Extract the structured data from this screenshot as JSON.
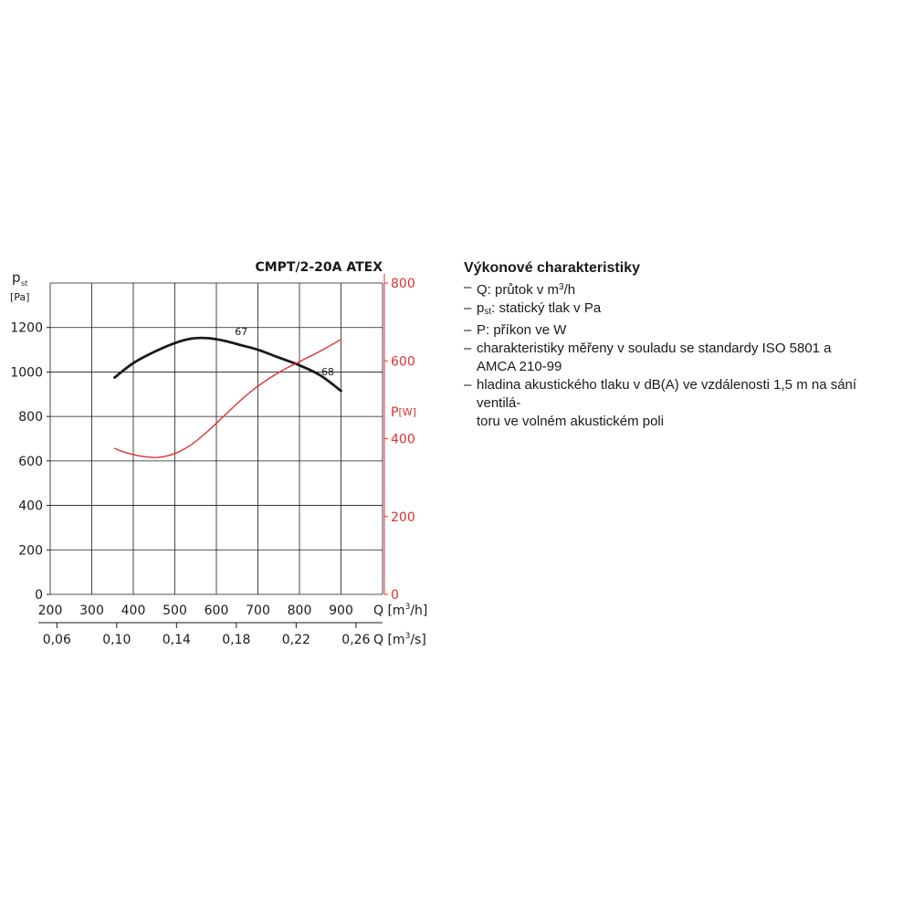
{
  "chart_data": {
    "type": "line",
    "title": "CMPT/2-20A ATEX",
    "y_axis": {
      "label_main": "p",
      "label_sub": "st",
      "unit": "[Pa]",
      "range": [
        0,
        1400
      ],
      "ticks": [
        0,
        200,
        400,
        600,
        800,
        1000,
        1200
      ],
      "grid": true
    },
    "y2_axis": {
      "label": "P",
      "unit": "[W]",
      "range": [
        0,
        800
      ],
      "ticks": [
        0,
        200,
        400,
        600,
        800
      ],
      "color": "#e03030"
    },
    "x_axis": {
      "label": "Q",
      "unit_prefix": "[m",
      "unit_sup": "3",
      "unit_suffix": "/h]",
      "range": [
        200,
        1000
      ],
      "ticks": [
        200,
        300,
        400,
        500,
        600,
        700,
        800,
        900
      ],
      "grid": true
    },
    "x2_axis": {
      "label": "Q",
      "unit_prefix": "[m",
      "unit_sup": "3",
      "unit_suffix": "/s]",
      "ticks": [
        "0,06",
        "0,10",
        "0,14",
        "0,18",
        "0,22",
        "0,26"
      ],
      "tick_q_values": [
        216,
        360,
        504,
        648,
        792,
        936
      ]
    },
    "series": [
      {
        "axis": "y",
        "color": "#1a1a1a",
        "x": [
          355,
          400,
          450,
          500,
          540,
          580,
          620,
          660,
          700,
          750,
          800,
          850,
          900
        ],
        "y": [
          975,
          1040,
          1090,
          1130,
          1150,
          1152,
          1140,
          1120,
          1100,
          1065,
          1030,
          985,
          915
        ]
      },
      {
        "axis": "y2",
        "color": "#e03030",
        "x": [
          355,
          380,
          420,
          460,
          500,
          540,
          580,
          620,
          660,
          700,
          750,
          800,
          850,
          900
        ],
        "y": [
          375,
          365,
          355,
          352,
          362,
          385,
          420,
          460,
          500,
          535,
          570,
          598,
          625,
          655
        ]
      }
    ],
    "annotations": [
      {
        "text": "67",
        "x": 660,
        "y": 1165
      },
      {
        "text": "68",
        "x": 868,
        "y": 985
      }
    ]
  },
  "legend": {
    "title": "Výkonové charakteristiky",
    "dash": "–",
    "items": [
      {
        "a": "Q: průtok v m",
        "sup": "3",
        "b": "/h"
      },
      {
        "a": "p",
        "sub": "st",
        "b": ": statický tlak v Pa"
      },
      {
        "a": "P: příkon ve W"
      },
      {
        "a": "charakteristiky měřeny v souladu se standardy ISO 5801 a",
        "cont": "AMCA 210-99"
      },
      {
        "a": "hladina akustického tlaku v dB(A) ve vzdálenosti 1,5 m na sání ventilá-",
        "cont": "toru ve volném akustickém poli"
      }
    ]
  }
}
